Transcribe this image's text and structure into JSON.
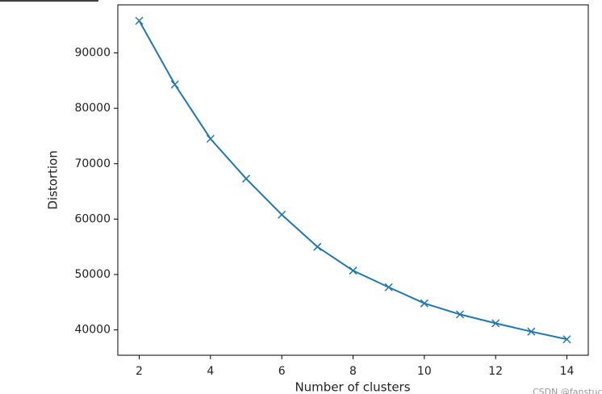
{
  "chart_data": {
    "type": "line",
    "xlabel": "Number of clusters",
    "ylabel": "Distortion",
    "x": [
      2,
      3,
      4,
      5,
      6,
      7,
      8,
      9,
      10,
      11,
      12,
      13,
      14
    ],
    "series": [
      {
        "name": "Distortion",
        "color": "#1f77b4",
        "marker": "x",
        "values": [
          95800,
          84300,
          74500,
          67300,
          60800,
          55000,
          50700,
          47700,
          44800,
          42800,
          41200,
          39700,
          38300
        ]
      }
    ],
    "xlim": [
      1.4,
      14.6
    ],
    "xticks": [
      2,
      4,
      6,
      8,
      10,
      12,
      14
    ],
    "ylim": [
      35425,
      98675
    ],
    "yticks": [
      40000,
      50000,
      60000,
      70000,
      80000,
      90000
    ],
    "grid": false,
    "watermark": "CSDN @fanstuck"
  }
}
